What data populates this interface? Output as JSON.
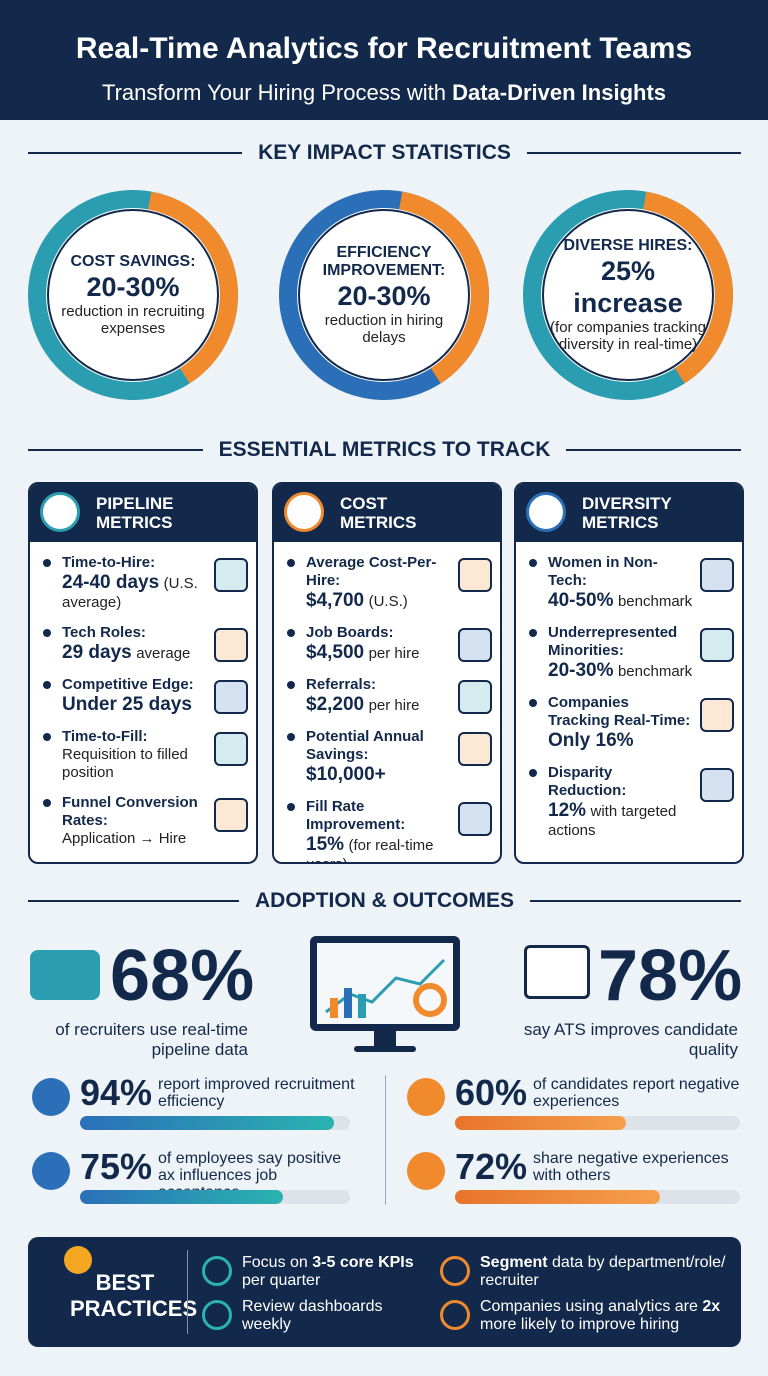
{
  "header": {
    "title": "Real-Time Analytics for Recruitment Teams",
    "subtitle": [
      {
        "text": "Transform Your Hiring Process with "
      },
      {
        "text": "Data-Driven Insights",
        "strong": true
      }
    ]
  },
  "key_stats": {
    "heading": "KEY IMPACT STATISTICS",
    "items": [
      {
        "label": "COST SAVINGS:",
        "value": "20-30%",
        "note": "reduction in recruiting expenses"
      },
      {
        "label": "EFFICIENCY IMPROVEMENT:",
        "value": "20-30%",
        "note": "reduction in hiring delays"
      },
      {
        "label": "DIVERSE HIRES:",
        "value": "25% increase",
        "note": "(for companies tracking diversity in real-time)"
      }
    ]
  },
  "metrics": {
    "heading": "ESSENTIAL METRICS TO TRACK",
    "cards": [
      {
        "title": "PIPELINE METRICS",
        "items": [
          {
            "label": "Time-to-Hire:",
            "value": "24-40 days",
            "note": "(U.S. average)"
          },
          {
            "label": "Tech Roles:",
            "value": "29 days",
            "note": "average"
          },
          {
            "label": "Competitive Edge:",
            "value": "Under 25 days"
          },
          {
            "label": "Time-to-Fill:",
            "note": "Requisition to filled position"
          },
          {
            "label": "Funnel Conversion Rates:",
            "note": "Application → Hire"
          }
        ]
      },
      {
        "title": "COST METRICS",
        "items": [
          {
            "label": "Average Cost-Per-Hire:",
            "value": "$4,700",
            "note": "(U.S.)"
          },
          {
            "label": "Job Boards:",
            "value": "$4,500",
            "note": "per hire"
          },
          {
            "label": "Referrals:",
            "value": "$2,200",
            "note": "per hire"
          },
          {
            "label": "Potential Annual Savings:",
            "value": "$10,000+"
          },
          {
            "label": "Fill Rate Improvement:",
            "value": "15%",
            "note": "(for real-time users)"
          }
        ]
      },
      {
        "title": "DIVERSITY METRICS",
        "items": [
          {
            "label": "Women in Non-Tech:",
            "value": "40-50%",
            "note": "benchmark"
          },
          {
            "label": "Underrepresented Minorities:",
            "value": "20-30%",
            "note": "benchmark"
          },
          {
            "label": "Companies Tracking Real-Time:",
            "value": "Only 16%"
          },
          {
            "label": "Disparity Reduction:",
            "value": "12%",
            "note": "with targeted actions"
          }
        ]
      }
    ]
  },
  "adoption": {
    "heading": "ADOPTION & OUTCOMES",
    "highlights": [
      {
        "value": "68%",
        "text": "of recruiters use real-time pipeline data"
      },
      {
        "value": "78%",
        "text": "say ATS improves candidate quality"
      }
    ],
    "bars": [
      {
        "value": 94,
        "label": "94%",
        "text": "report improved recruitment efficiency"
      },
      {
        "value": 75,
        "label": "75%",
        "text": "of employees say positive ax influences job acceptance"
      },
      {
        "value": 60,
        "label": "60%",
        "text": "of candidates report negative experiences"
      },
      {
        "value": 72,
        "label": "72%",
        "text": "share negative experiences with others"
      }
    ]
  },
  "best_practices": {
    "title": "BEST PRACTICES",
    "items": [
      [
        {
          "text": "Focus on "
        },
        {
          "text": "3-5 core KPIs",
          "strong": true
        },
        {
          "text": " per quarter"
        }
      ],
      [
        {
          "text": "Segment",
          "strong": true
        },
        {
          "text": " data by department/role/ recruiter"
        }
      ],
      [
        {
          "text": "Review dashboards weekly"
        }
      ],
      [
        {
          "text": "Companies using analytics are "
        },
        {
          "text": "2x",
          "strong": true
        },
        {
          "text": " more likely to improve hiring"
        }
      ]
    ]
  }
}
